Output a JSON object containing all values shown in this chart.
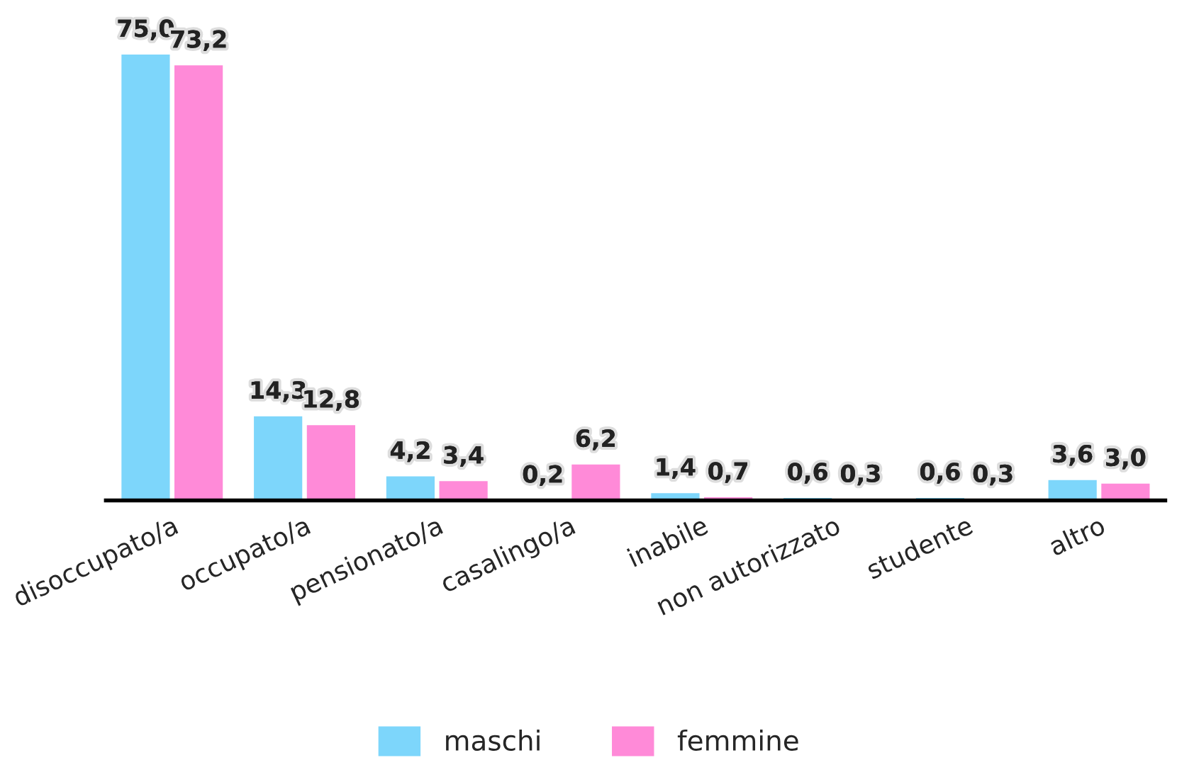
{
  "chart_data": {
    "type": "bar",
    "categories": [
      "disoccupato/a",
      "occupato/a",
      "pensionato/a",
      "casalingo/a",
      "inabile",
      "non autorizzato",
      "studente",
      "altro"
    ],
    "series": [
      {
        "name": "maschi",
        "color": "#7dd6fb",
        "values": [
          75.0,
          14.3,
          4.2,
          0.2,
          1.4,
          0.6,
          0.6,
          3.6
        ],
        "value_labels": [
          "75,0",
          "14,3",
          "4,2",
          "0,2",
          "1,4",
          "0,6",
          "0,6",
          "3,6"
        ]
      },
      {
        "name": "femmine",
        "color": "#ff8ad8",
        "values": [
          73.2,
          12.8,
          3.4,
          6.2,
          0.7,
          0.3,
          0.3,
          3.0
        ],
        "value_labels": [
          "73,2",
          "12,8",
          "3,4",
          "6,2",
          "0,7",
          "0,3",
          "0,3",
          "3,0"
        ]
      }
    ],
    "legend": "bottom",
    "grid": false,
    "tick_labels": "x"
  }
}
